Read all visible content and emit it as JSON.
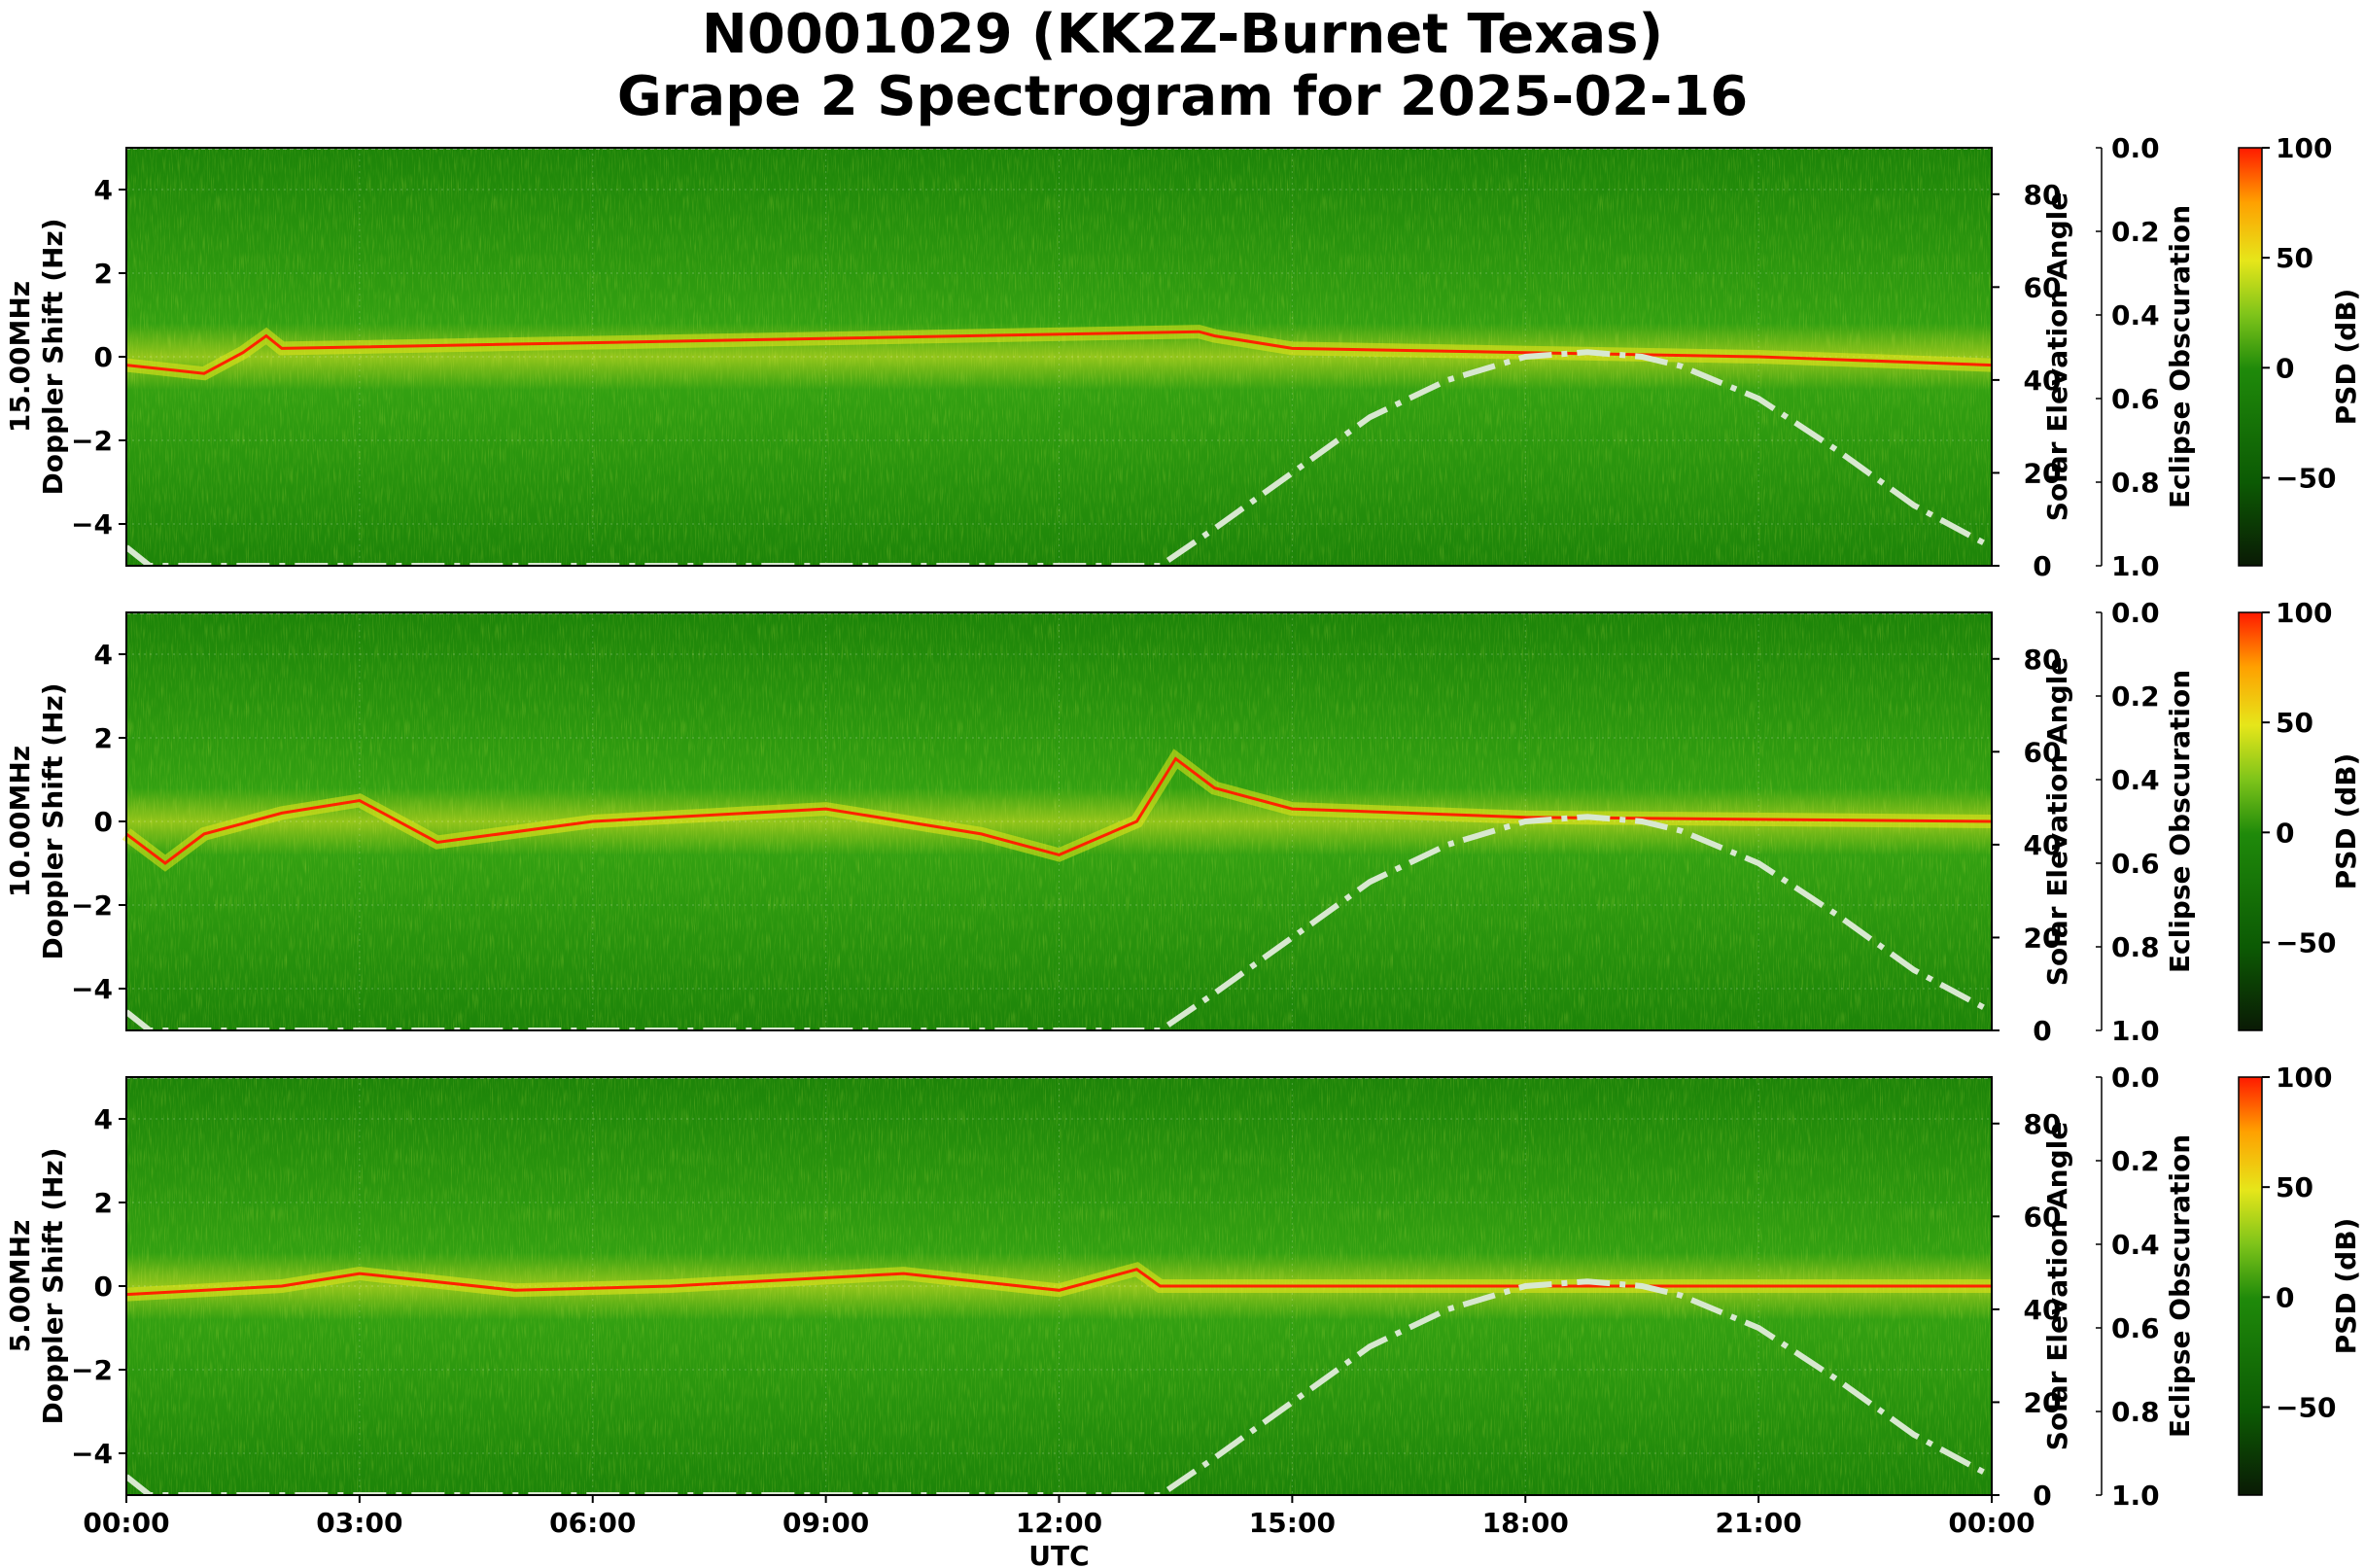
{
  "title_line1": "N0001029 (KK2Z-Burnet Texas)",
  "title_line2": "Grape 2 Spectrogram for 2025-02-16",
  "x_label": "UTC",
  "x_ticks": [
    "00:00",
    "03:00",
    "06:00",
    "09:00",
    "12:00",
    "15:00",
    "18:00",
    "21:00",
    "00:00"
  ],
  "y_label": "Doppler Shift (Hz)",
  "y_ticks": [
    4,
    2,
    0,
    -2,
    -4
  ],
  "right_axis_label": "Solar Elevation Angle",
  "right_ticks": [
    80,
    60,
    40,
    20,
    0
  ],
  "eclipse_label": "Eclipse Obscuration",
  "eclipse_ticks": [
    "0.0",
    "0.2",
    "0.4",
    "0.6",
    "0.8",
    "1.0"
  ],
  "colorbar_label": "PSD (dB)",
  "colorbar_ticks": [
    "100",
    "50",
    "0",
    "−50"
  ],
  "colors": {
    "background_green": "#1f8a0a",
    "signal_yellow": "#e6e61a",
    "signal_red": "#ff2200",
    "solar_curve": "#d8e8d0"
  },
  "chart_data": {
    "type": "heatmap",
    "x_range_hours": [
      0,
      24
    ],
    "y_range_hz": [
      -5,
      5
    ],
    "right_range_deg": [
      0,
      90
    ],
    "eclipse_range": [
      1.0,
      0.0
    ],
    "colorbar_range_db": [
      -90,
      100
    ],
    "panels": [
      {
        "name": "15.00MHz",
        "doppler_trace": [
          [
            0,
            -0.2
          ],
          [
            1,
            -0.4
          ],
          [
            1.5,
            0.1
          ],
          [
            1.8,
            0.5
          ],
          [
            2,
            0.2
          ],
          [
            13.8,
            0.6
          ],
          [
            14,
            0.5
          ],
          [
            15,
            0.2
          ],
          [
            18,
            0.1
          ],
          [
            21,
            0.0
          ],
          [
            24,
            -0.2
          ]
        ],
        "solar_elevation": [
          [
            0,
            4
          ],
          [
            0.3,
            0
          ],
          [
            13.3,
            0
          ],
          [
            14,
            8
          ],
          [
            15,
            20
          ],
          [
            16,
            32
          ],
          [
            17,
            40
          ],
          [
            18,
            45
          ],
          [
            18.8,
            46
          ],
          [
            19.5,
            45
          ],
          [
            20,
            43
          ],
          [
            21,
            36
          ],
          [
            22,
            25
          ],
          [
            23,
            13
          ],
          [
            24,
            4
          ]
        ]
      },
      {
        "name": "10.00MHz",
        "doppler_trace": [
          [
            0,
            -0.3
          ],
          [
            0.5,
            -1.0
          ],
          [
            1,
            -0.3
          ],
          [
            2,
            0.2
          ],
          [
            3,
            0.5
          ],
          [
            4,
            -0.5
          ],
          [
            6,
            0.0
          ],
          [
            9,
            0.3
          ],
          [
            11,
            -0.3
          ],
          [
            12,
            -0.8
          ],
          [
            13,
            0.0
          ],
          [
            13.5,
            1.5
          ],
          [
            14,
            0.8
          ],
          [
            15,
            0.3
          ],
          [
            18,
            0.1
          ],
          [
            24,
            0.0
          ]
        ],
        "solar_elevation": [
          [
            0,
            4
          ],
          [
            0.3,
            0
          ],
          [
            13.3,
            0
          ],
          [
            14,
            8
          ],
          [
            15,
            20
          ],
          [
            16,
            32
          ],
          [
            17,
            40
          ],
          [
            18,
            45
          ],
          [
            18.8,
            46
          ],
          [
            19.5,
            45
          ],
          [
            20,
            43
          ],
          [
            21,
            36
          ],
          [
            22,
            25
          ],
          [
            23,
            13
          ],
          [
            24,
            4
          ]
        ]
      },
      {
        "name": "5.00MHz",
        "doppler_trace": [
          [
            0,
            -0.2
          ],
          [
            2,
            0.0
          ],
          [
            3,
            0.3
          ],
          [
            5,
            -0.1
          ],
          [
            7,
            0.0
          ],
          [
            9,
            0.2
          ],
          [
            10,
            0.3
          ],
          [
            12,
            -0.1
          ],
          [
            13,
            0.4
          ],
          [
            13.3,
            0.0
          ],
          [
            24,
            0.0
          ]
        ],
        "solar_elevation": [
          [
            0,
            4
          ],
          [
            0.3,
            0
          ],
          [
            13.3,
            0
          ],
          [
            14,
            8
          ],
          [
            15,
            20
          ],
          [
            16,
            32
          ],
          [
            17,
            40
          ],
          [
            18,
            45
          ],
          [
            18.8,
            46
          ],
          [
            19.5,
            45
          ],
          [
            20,
            43
          ],
          [
            21,
            36
          ],
          [
            22,
            25
          ],
          [
            23,
            13
          ],
          [
            24,
            4
          ]
        ]
      }
    ]
  }
}
